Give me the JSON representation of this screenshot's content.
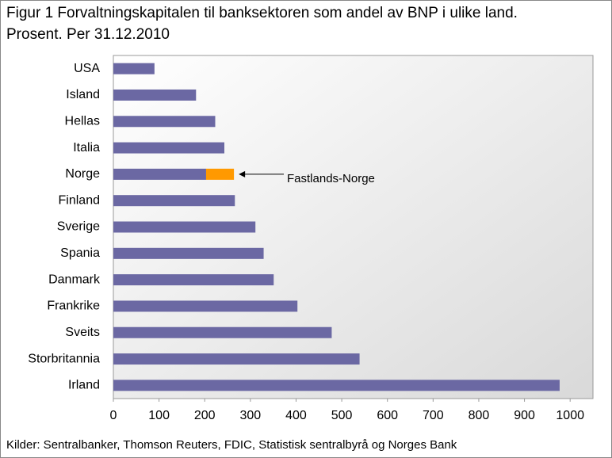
{
  "chart_data": {
    "type": "bar",
    "orientation": "horizontal",
    "stacked": true,
    "title": "Figur 1 Forvaltningskapitalen til banksektoren som andel av BNP i ulike land.",
    "subtitle": "Prosent. Per 31.12.2010",
    "categories": [
      "USA",
      "Island",
      "Hellas",
      "Italia",
      "Norge",
      "Finland",
      "Sverige",
      "Spania",
      "Danmark",
      "Frankrike",
      "Sveits",
      "Storbritannia",
      "Irland"
    ],
    "series": [
      {
        "color": "#6b68a3",
        "values": [
          90,
          181,
          223,
          243,
          203,
          266,
          311,
          329,
          351,
          403,
          478,
          539,
          977
        ]
      },
      {
        "name": "Fastlands-Norge",
        "color": "#ff9900",
        "values": [
          null,
          null,
          null,
          null,
          61,
          null,
          null,
          null,
          null,
          null,
          null,
          null,
          null
        ]
      }
    ],
    "xlim": [
      0,
      1050
    ],
    "xticks": [
      0,
      100,
      200,
      300,
      400,
      500,
      600,
      700,
      800,
      900,
      1000
    ],
    "source": "Kilder: Sentralbanker, Thomson Reuters, FDIC, Statistisk sentralbyrå og Norges Bank"
  }
}
